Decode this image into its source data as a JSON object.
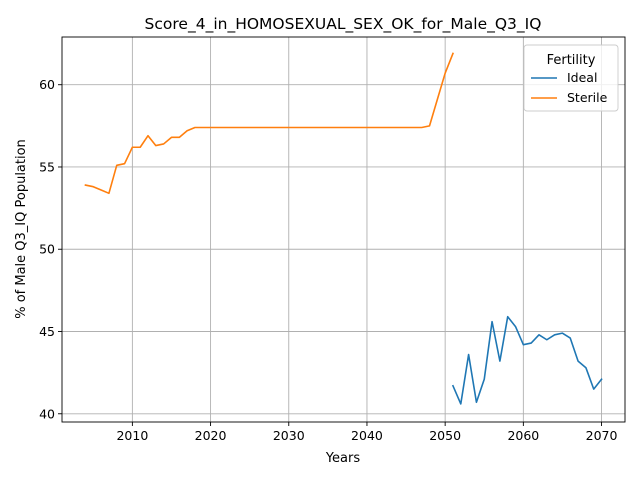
{
  "chart_data": {
    "type": "line",
    "title": "Score_4_in_HOMOSEXUAL_SEX_OK_for_Male_Q3_IQ",
    "xlabel": "Years",
    "ylabel": "% of Male Q3_IQ Population",
    "xlim": [
      2001,
      2073
    ],
    "ylim": [
      39.5,
      62.9
    ],
    "xticks": [
      2010,
      2020,
      2030,
      2040,
      2050,
      2060,
      2070
    ],
    "yticks": [
      40,
      45,
      50,
      55,
      60
    ],
    "grid": true,
    "legend": {
      "title": "Fertility",
      "placement": "top-right"
    },
    "series": [
      {
        "name": "Ideal",
        "color": "#1f77b4",
        "x": [
          2051,
          2052,
          2053,
          2054,
          2055,
          2056,
          2057,
          2058,
          2059,
          2060,
          2061,
          2062,
          2063,
          2064,
          2065,
          2066,
          2067,
          2068,
          2069,
          2070
        ],
        "y": [
          41.7,
          40.6,
          43.6,
          40.7,
          42.1,
          45.6,
          43.2,
          45.9,
          45.3,
          44.2,
          44.3,
          44.8,
          44.5,
          44.8,
          44.9,
          44.6,
          43.2,
          42.8,
          41.5,
          42.1
        ]
      },
      {
        "name": "Sterile",
        "color": "#ff7f0e",
        "x": [
          2004,
          2005,
          2006,
          2007,
          2008,
          2009,
          2010,
          2011,
          2012,
          2013,
          2014,
          2015,
          2016,
          2017,
          2018,
          2020,
          2025,
          2030,
          2035,
          2040,
          2045,
          2047,
          2048,
          2049,
          2050,
          2051
        ],
        "y": [
          53.9,
          53.8,
          53.6,
          53.4,
          55.1,
          55.2,
          56.2,
          56.2,
          56.9,
          56.3,
          56.4,
          56.8,
          56.8,
          57.2,
          57.4,
          57.4,
          57.4,
          57.4,
          57.4,
          57.4,
          57.4,
          57.4,
          57.5,
          59.1,
          60.7,
          61.9
        ]
      }
    ]
  }
}
